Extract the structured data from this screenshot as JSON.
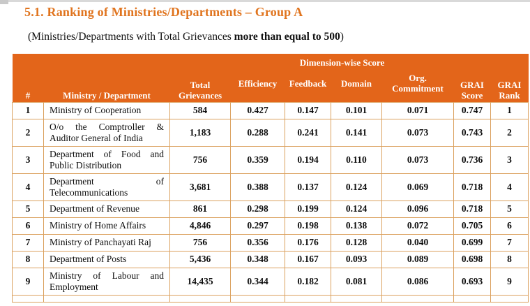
{
  "page": {
    "title": "5.1. Ranking of Ministries/Departments – Group A",
    "subtitle_lead": "(Ministries/Departments with Total Grievances ",
    "subtitle_bold": "more than equal to 500",
    "subtitle_close": ")"
  },
  "colors": {
    "header_bg": "#e3651a",
    "title_orange": "#e0741e",
    "table_border": "#dba15f",
    "body_text": "#0d0d0d"
  },
  "table": {
    "headers": {
      "index": "#",
      "ministry": "Ministry / Department",
      "total": "Total Grievances",
      "dimension_group": "Dimension-wise Score",
      "efficiency": "Efficiency",
      "feedback": "Feedback",
      "domain": "Domain",
      "org_commitment": "Org. Commitment",
      "grai_score": "GRAI Score",
      "grai_rank": "GRAI Rank"
    },
    "rows": [
      {
        "index": "1",
        "ministry": "Ministry of Cooperation",
        "total": "584",
        "efficiency": "0.427",
        "feedback": "0.147",
        "domain": "0.101",
        "org_commitment": "0.071",
        "grai_score": "0.747",
        "grai_rank": "1"
      },
      {
        "index": "2",
        "ministry": "O/o the Comptroller & Auditor General of India",
        "total": "1,183",
        "efficiency": "0.288",
        "feedback": "0.241",
        "domain": "0.141",
        "org_commitment": "0.073",
        "grai_score": "0.743",
        "grai_rank": "2"
      },
      {
        "index": "3",
        "ministry": "Department of Food and Public Distribution",
        "total": "756",
        "efficiency": "0.359",
        "feedback": "0.194",
        "domain": "0.110",
        "org_commitment": "0.073",
        "grai_score": "0.736",
        "grai_rank": "3"
      },
      {
        "index": "4",
        "ministry": "Department of Telecommunications",
        "total": "3,681",
        "efficiency": "0.388",
        "feedback": "0.137",
        "domain": "0.124",
        "org_commitment": "0.069",
        "grai_score": "0.718",
        "grai_rank": "4"
      },
      {
        "index": "5",
        "ministry": "Department of Revenue",
        "total": "861",
        "efficiency": "0.298",
        "feedback": "0.199",
        "domain": "0.124",
        "org_commitment": "0.096",
        "grai_score": "0.718",
        "grai_rank": "5"
      },
      {
        "index": "6",
        "ministry": "Ministry of Home Affairs",
        "total": "4,846",
        "efficiency": "0.297",
        "feedback": "0.198",
        "domain": "0.138",
        "org_commitment": "0.072",
        "grai_score": "0.705",
        "grai_rank": "6"
      },
      {
        "index": "7",
        "ministry": "Ministry of Panchayati Raj",
        "total": "756",
        "efficiency": "0.356",
        "feedback": "0.176",
        "domain": "0.128",
        "org_commitment": "0.040",
        "grai_score": "0.699",
        "grai_rank": "7"
      },
      {
        "index": "8",
        "ministry": "Department of Posts",
        "total": "5,436",
        "efficiency": "0.348",
        "feedback": "0.167",
        "domain": "0.093",
        "org_commitment": "0.089",
        "grai_score": "0.698",
        "grai_rank": "8"
      },
      {
        "index": "9",
        "ministry": "Ministry of Labour and Employment",
        "total": "14,435",
        "efficiency": "0.344",
        "feedback": "0.182",
        "domain": "0.081",
        "org_commitment": "0.086",
        "grai_score": "0.693",
        "grai_rank": "9"
      }
    ]
  }
}
